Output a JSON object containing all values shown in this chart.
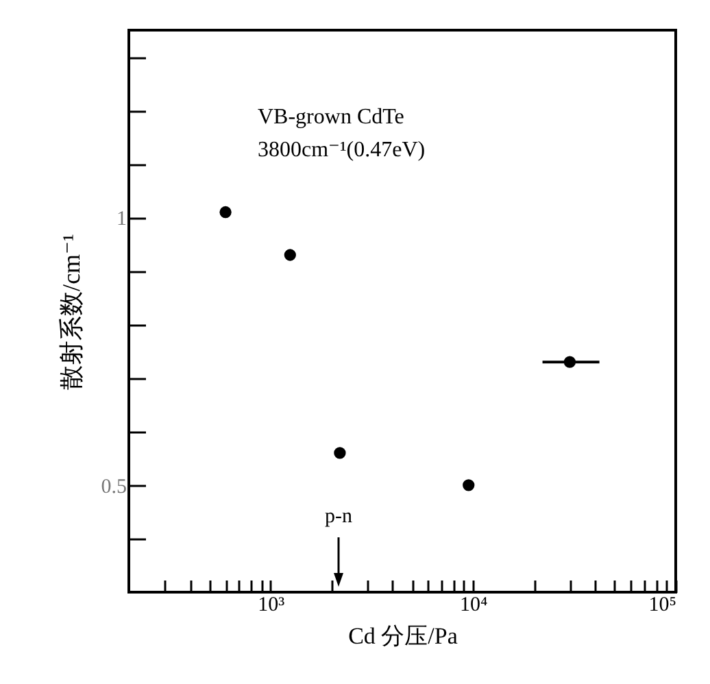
{
  "chart_data": {
    "type": "scatter",
    "xlabel": "Cd 分压/Pa",
    "ylabel": "散射系数/cm⁻¹",
    "log": "x",
    "xlim": [
      200,
      100000
    ],
    "ylim": [
      0.3,
      1.35
    ],
    "xticks": [
      {
        "value": 300,
        "label": null
      },
      {
        "value": 400,
        "label": null
      },
      {
        "value": 500,
        "label": null
      },
      {
        "value": 600,
        "label": null
      },
      {
        "value": 700,
        "label": null
      },
      {
        "value": 800,
        "label": null
      },
      {
        "value": 900,
        "label": null
      },
      {
        "value": 1000,
        "label": "10³"
      },
      {
        "value": 2000,
        "label": null
      },
      {
        "value": 3000,
        "label": null
      },
      {
        "value": 4000,
        "label": null
      },
      {
        "value": 5000,
        "label": null
      },
      {
        "value": 6000,
        "label": null
      },
      {
        "value": 7000,
        "label": null
      },
      {
        "value": 8000,
        "label": null
      },
      {
        "value": 9000,
        "label": null
      },
      {
        "value": 10000,
        "label": "10⁴"
      },
      {
        "value": 20000,
        "label": null
      },
      {
        "value": 30000,
        "label": null
      },
      {
        "value": 40000,
        "label": null
      },
      {
        "value": 50000,
        "label": null
      },
      {
        "value": 60000,
        "label": null
      },
      {
        "value": 70000,
        "label": null
      },
      {
        "value": 80000,
        "label": null
      },
      {
        "value": 90000,
        "label": null
      },
      {
        "value": 100000,
        "label": "10⁵"
      }
    ],
    "yticks": [
      {
        "value": 0.4,
        "label": null
      },
      0.5,
      {
        "value": 0.6,
        "label": null
      },
      {
        "value": 0.7,
        "label": null
      },
      {
        "value": 0.8,
        "label": null
      },
      {
        "value": 0.9,
        "label": null
      },
      1,
      {
        "value": 1.1,
        "label": null
      },
      {
        "value": 1.2,
        "label": null
      },
      {
        "value": 1.3,
        "label": null
      }
    ],
    "x": [
      600,
      1250,
      2200,
      9500,
      30000
    ],
    "values": [
      1.01,
      0.93,
      0.56,
      0.5,
      0.73
    ],
    "xerrors": [
      null,
      null,
      null,
      null,
      [
        22000,
        42000
      ]
    ],
    "color": "#000000",
    "marker": "circle",
    "grid": false,
    "annotations": [
      "VB-grown CdTe",
      "3800cm⁻¹(0.47eV)",
      "p-n"
    ]
  }
}
